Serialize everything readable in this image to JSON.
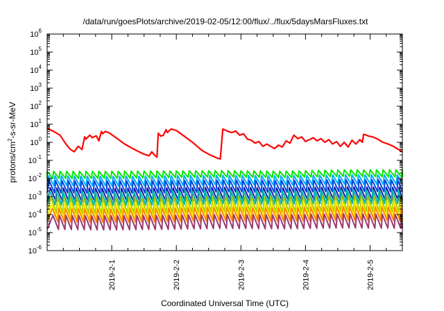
{
  "chart_data": {
    "type": "line",
    "title": "/data/run/goesPlots/archive/2019-02-05/12:00/flux/../flux/5daysMarsFluxes.txt",
    "xlabel": "Coordinated Universal Time (UTC)",
    "ylabel_parts": [
      "protons/cm",
      "2",
      "-s-sr-MeV"
    ],
    "yscale": "log",
    "ylim_exp": [
      -6,
      6
    ],
    "ytick_base": "10",
    "ytick_exponents": [
      "-6",
      "-5",
      "-4",
      "-3",
      "-2",
      "-1",
      "0",
      "1",
      "2",
      "3",
      "4",
      "5",
      "6"
    ],
    "xlim_days": [
      0,
      5.5
    ],
    "xticks": [
      {
        "label": "2019-2-1",
        "x": 1
      },
      {
        "label": "2019-2-2",
        "x": 2
      },
      {
        "label": "2019-2-3",
        "x": 3
      },
      {
        "label": "2019-2-4",
        "x": 4
      },
      {
        "label": "2019-2-5",
        "x": 5
      }
    ],
    "grid": false,
    "legend": "none",
    "series": [
      {
        "color": "#ff0000",
        "x": [
          0.0,
          0.1,
          0.2,
          0.28,
          0.32,
          0.36,
          0.42,
          0.48,
          0.54,
          0.58,
          0.6,
          0.66,
          0.7,
          0.72,
          0.76,
          0.8,
          0.84,
          0.86,
          0.9,
          0.95,
          1.05,
          1.2,
          1.35,
          1.5,
          1.58,
          1.62,
          1.66,
          1.7,
          1.72,
          1.76,
          1.8,
          1.84,
          1.86,
          1.92,
          2.0,
          2.1,
          2.25,
          2.4,
          2.5,
          2.6,
          2.64,
          2.68,
          2.72,
          2.74,
          2.8,
          2.86,
          2.92,
          2.98,
          3.04,
          3.1,
          3.16,
          3.22,
          3.28,
          3.34,
          3.4,
          3.46,
          3.52,
          3.58,
          3.64,
          3.7,
          3.76,
          3.82,
          3.88,
          3.94,
          4.0,
          4.06,
          4.12,
          4.18,
          4.24,
          4.3,
          4.36,
          4.42,
          4.48,
          4.54,
          4.6,
          4.66,
          4.72,
          4.78,
          4.84,
          4.88,
          4.9,
          4.94,
          4.98,
          5.04,
          5.12,
          5.2,
          5.28,
          5.36,
          5.44,
          5.5
        ],
        "y": [
          6.0,
          4.0,
          2.5,
          0.9,
          0.6,
          0.4,
          0.3,
          0.6,
          0.4,
          2.0,
          1.5,
          2.5,
          1.8,
          2.0,
          2.3,
          1.2,
          4.0,
          3.0,
          4.0,
          3.5,
          2.0,
          0.8,
          0.4,
          0.22,
          0.18,
          0.3,
          0.2,
          0.15,
          3.2,
          2.2,
          2.5,
          5.0,
          3.5,
          5.5,
          4.5,
          2.5,
          1.0,
          0.35,
          0.22,
          0.15,
          0.13,
          0.12,
          5.5,
          5.0,
          4.0,
          3.5,
          4.2,
          2.5,
          3.0,
          1.5,
          1.3,
          0.9,
          1.1,
          0.6,
          0.8,
          0.6,
          0.45,
          0.7,
          0.55,
          1.2,
          0.9,
          2.5,
          1.6,
          2.0,
          1.1,
          1.4,
          1.8,
          1.2,
          1.6,
          1.0,
          1.4,
          0.8,
          1.1,
          0.6,
          1.0,
          0.55,
          1.3,
          0.8,
          1.4,
          1.0,
          2.8,
          2.5,
          2.2,
          2.0,
          1.5,
          1.0,
          0.8,
          0.6,
          0.4,
          0.3
        ]
      },
      {
        "color": "#00e600",
        "sawtooth": true,
        "period": 0.1,
        "phase": 0.0,
        "hi": [
          0.025,
          0.025,
          0.026,
          0.027,
          0.025,
          0.03,
          0.03
        ],
        "lo": [
          0.01,
          0.01,
          0.011,
          0.012,
          0.011,
          0.013,
          0.012
        ]
      },
      {
        "color": "#00aaff",
        "sawtooth": true,
        "period": 0.1,
        "phase": 0.02,
        "hi": [
          0.014,
          0.013,
          0.014,
          0.015,
          0.014,
          0.016,
          0.016
        ],
        "lo": [
          0.004,
          0.0038,
          0.004,
          0.0045,
          0.0042,
          0.0048,
          0.0046
        ]
      },
      {
        "color": "#0044dd",
        "sawtooth": true,
        "period": 0.1,
        "phase": 0.03,
        "hi": [
          0.0075,
          0.0072,
          0.0075,
          0.008,
          0.0076,
          0.0085,
          0.0082
        ],
        "lo": [
          0.0016,
          0.0015,
          0.0016,
          0.0018,
          0.0017,
          0.0019,
          0.0018
        ]
      },
      {
        "color": "#1a1aa6",
        "sawtooth": true,
        "period": 0.1,
        "phase": 0.05,
        "hi": [
          0.003,
          0.0028,
          0.003,
          0.0032,
          0.003,
          0.0034,
          0.0032
        ],
        "lo": [
          0.00055,
          0.0005,
          0.00055,
          0.0006,
          0.00058,
          0.00065,
          0.0006
        ]
      },
      {
        "color": "#00b8a8",
        "sawtooth": true,
        "period": 0.1,
        "phase": 0.04,
        "hi": [
          0.002,
          0.0018,
          0.002,
          0.0022,
          0.002,
          0.0024,
          0.0022
        ],
        "lo": [
          0.00035,
          0.00032,
          0.00035,
          0.0004,
          0.00038,
          0.00042,
          0.0004
        ]
      },
      {
        "color": "#aacc00",
        "sawtooth": true,
        "period": 0.1,
        "phase": 0.06,
        "hi": [
          0.0009,
          0.00085,
          0.0009,
          0.001,
          0.00095,
          0.0011,
          0.001
        ],
        "lo": [
          0.00012,
          0.00011,
          0.00012,
          0.00014,
          0.00013,
          0.00015,
          0.00014
        ]
      },
      {
        "color": "#ffee00",
        "sawtooth": true,
        "period": 0.1,
        "phase": 0.07,
        "hi": [
          0.0004,
          0.00038,
          0.0004,
          0.00045,
          0.00042,
          0.0005,
          0.00046
        ],
        "lo": [
          6e-05,
          5.5e-05,
          6e-05,
          7e-05,
          6.5e-05,
          7.5e-05,
          7e-05
        ]
      },
      {
        "color": "#ff8800",
        "sawtooth": true,
        "period": 0.1,
        "phase": 0.08,
        "hi": [
          0.00022,
          0.0002,
          0.00022,
          0.00025,
          0.00023,
          0.00027,
          0.00025
        ],
        "lo": [
          4e-05,
          3.6e-05,
          4e-05,
          4.5e-05,
          4.2e-05,
          4.8e-05,
          4.5e-05
        ]
      },
      {
        "color": "#9b3a73",
        "sawtooth": true,
        "period": 0.1,
        "phase": 0.09,
        "hi": [
          9e-05,
          8.5e-05,
          9e-05,
          0.0001,
          9.5e-05,
          0.00011,
          0.0001
        ],
        "lo": [
          1.5e-05,
          1.4e-05,
          1.5e-05,
          1.7e-05,
          1.6e-05,
          1.8e-05,
          1.7e-05
        ]
      }
    ]
  }
}
